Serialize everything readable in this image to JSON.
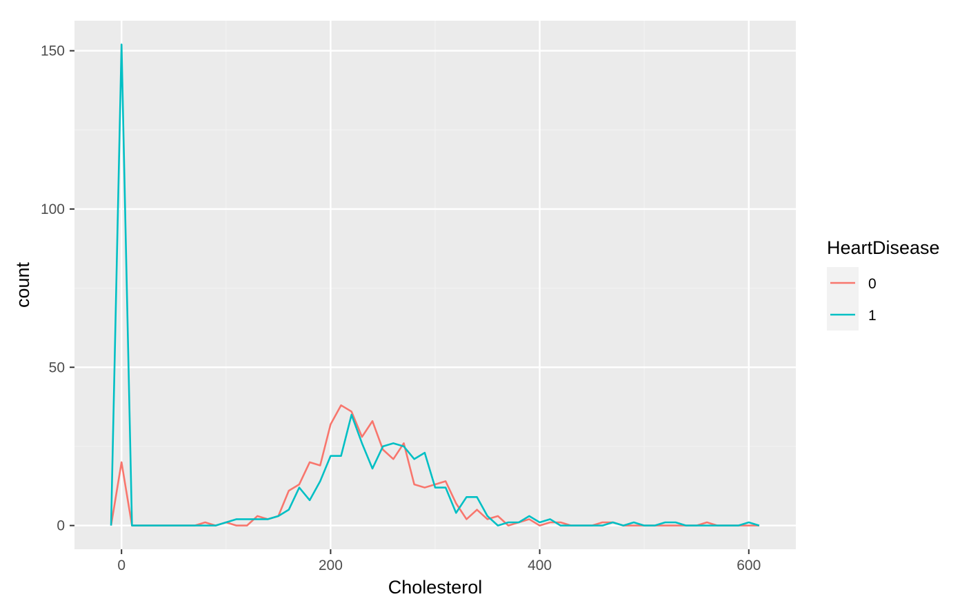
{
  "chart_data": {
    "type": "line",
    "title": "",
    "xlabel": "Cholesterol",
    "ylabel": "count",
    "xlim": [
      -45,
      645
    ],
    "ylim": [
      -7.5,
      159.5
    ],
    "xticks": [
      0,
      200,
      400,
      600
    ],
    "yticks": [
      0,
      50,
      100,
      150
    ],
    "grid": true,
    "legend": {
      "title": "HeartDisease",
      "placement": "right"
    },
    "x": [
      -10,
      0,
      10,
      20,
      30,
      40,
      50,
      60,
      70,
      80,
      90,
      100,
      110,
      120,
      130,
      140,
      150,
      160,
      170,
      180,
      190,
      200,
      210,
      220,
      230,
      240,
      250,
      260,
      270,
      280,
      290,
      300,
      310,
      320,
      330,
      340,
      350,
      360,
      370,
      380,
      390,
      400,
      410,
      420,
      430,
      440,
      450,
      460,
      470,
      480,
      490,
      500,
      510,
      520,
      530,
      540,
      550,
      560,
      570,
      580,
      590,
      600,
      610
    ],
    "series": [
      {
        "name": "0",
        "color": "#F8766D",
        "values": [
          0,
          20,
          0,
          0,
          0,
          0,
          0,
          0,
          0,
          1,
          0,
          1,
          0,
          0,
          3,
          2,
          3,
          11,
          13,
          20,
          19,
          32,
          38,
          36,
          28,
          33,
          24,
          21,
          26,
          13,
          12,
          13,
          14,
          7,
          2,
          5,
          2,
          3,
          0,
          1,
          2,
          0,
          1,
          1,
          0,
          0,
          0,
          1,
          1,
          0,
          0,
          0,
          0,
          0,
          0,
          0,
          0,
          1,
          0,
          0,
          0,
          0,
          0
        ]
      },
      {
        "name": "1",
        "color": "#00BFC4",
        "values": [
          0,
          152,
          0,
          0,
          0,
          0,
          0,
          0,
          0,
          0,
          0,
          1,
          2,
          2,
          2,
          2,
          3,
          5,
          12,
          8,
          14,
          22,
          22,
          35,
          26,
          18,
          25,
          26,
          25,
          21,
          23,
          12,
          12,
          4,
          9,
          9,
          3,
          0,
          1,
          1,
          3,
          1,
          2,
          0,
          0,
          0,
          0,
          0,
          1,
          0,
          1,
          0,
          0,
          1,
          1,
          0,
          0,
          0,
          0,
          0,
          0,
          1,
          0
        ]
      }
    ]
  },
  "colors": {
    "panel_background": "#EBEBEB",
    "grid_major": "#FFFFFF",
    "grid_minor": "#F2F2F2",
    "legend_key_background": "#F2F2F2"
  }
}
